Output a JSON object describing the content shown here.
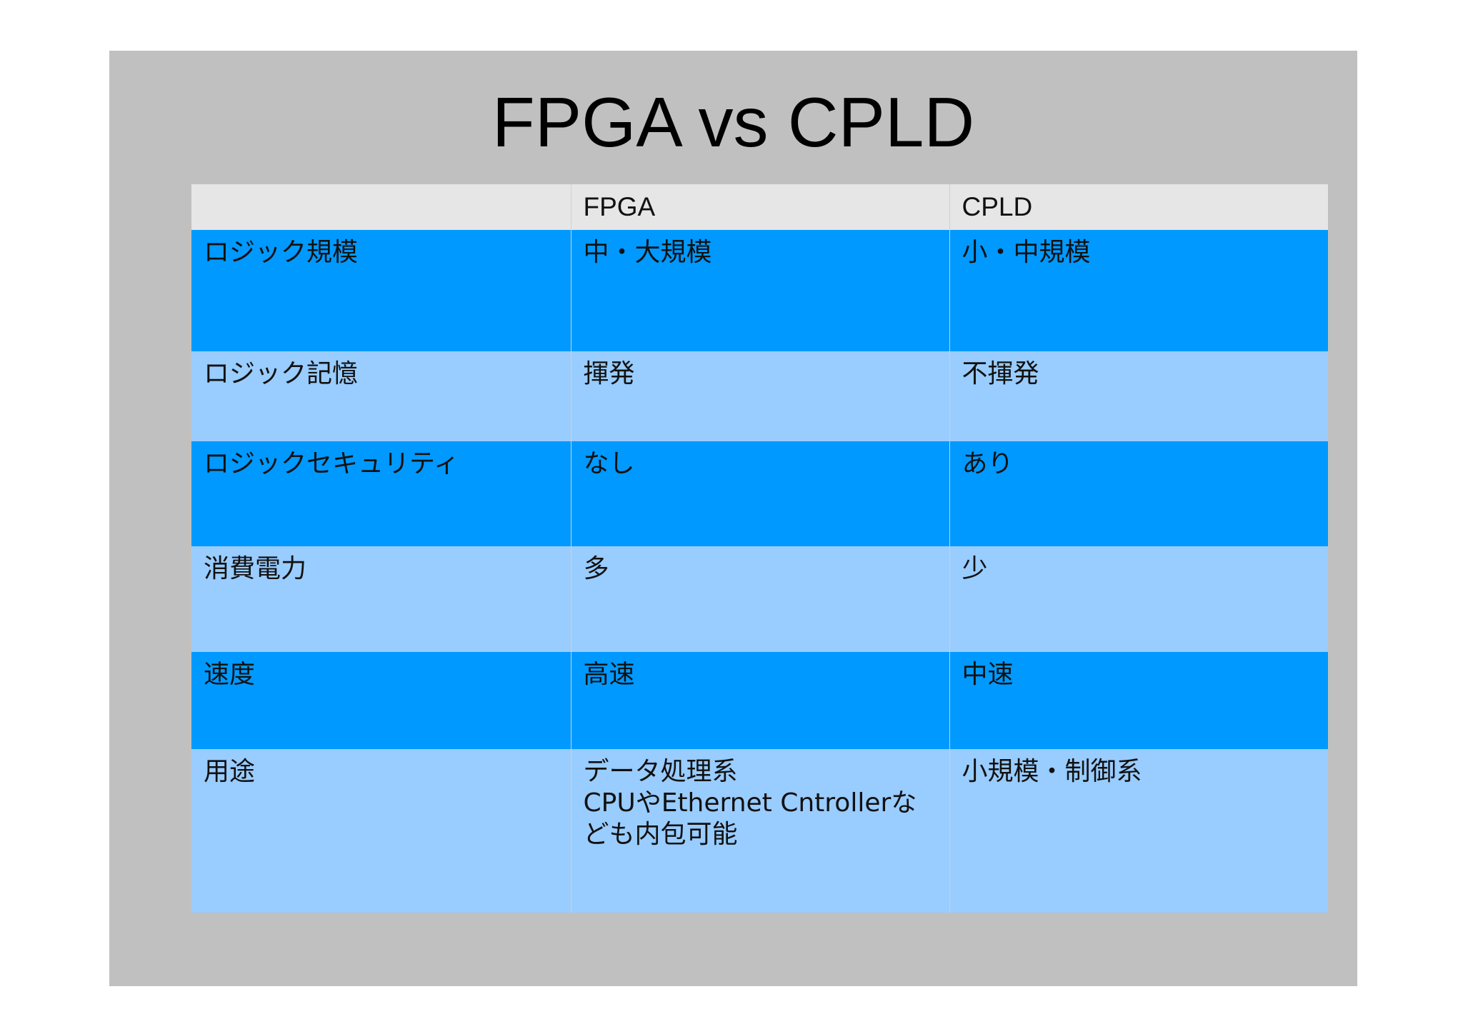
{
  "title": "FPGA vs CPLD",
  "colors": {
    "slide_background": "#c0c0c0",
    "header_row": "#e6e6e6",
    "row_dark": "#0099ff",
    "row_light": "#99ccff"
  },
  "table": {
    "headers": [
      "",
      "FPGA",
      "CPLD"
    ],
    "rows": [
      {
        "label": "ロジック規模",
        "fpga": [
          "中・大規模"
        ],
        "cpld": [
          "小・中規模"
        ]
      },
      {
        "label": "ロジック記憶",
        "fpga": [
          "揮発"
        ],
        "cpld": [
          "不揮発"
        ]
      },
      {
        "label": "ロジックセキュリティ",
        "fpga": [
          "なし"
        ],
        "cpld": [
          "あり"
        ]
      },
      {
        "label": "消費電力",
        "fpga": [
          "多"
        ],
        "cpld": [
          "少"
        ]
      },
      {
        "label": "速度",
        "fpga": [
          "高速"
        ],
        "cpld": [
          "中速"
        ]
      },
      {
        "label": "用途",
        "fpga": [
          "データ処理系",
          "CPUやEthernet Cntrollerな",
          "ども内包可能"
        ],
        "cpld": [
          "小規模・制御系"
        ]
      }
    ]
  }
}
